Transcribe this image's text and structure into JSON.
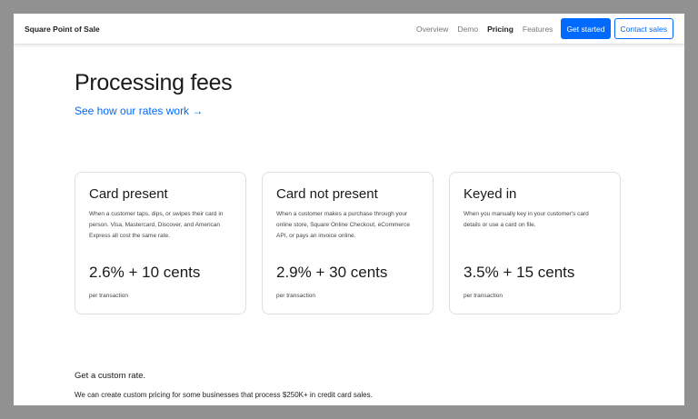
{
  "header": {
    "brand": "Square Point of Sale",
    "nav": [
      {
        "label": "Overview",
        "active": false
      },
      {
        "label": "Demo",
        "active": false
      },
      {
        "label": "Pricing",
        "active": true
      },
      {
        "label": "Features",
        "active": false
      }
    ],
    "get_started": "Get started",
    "contact_sales": "Contact sales"
  },
  "main": {
    "title": "Processing fees",
    "rates_link": "See how our rates work →",
    "cards": [
      {
        "title": "Card present",
        "description": "When a customer taps, dips, or swipes their card in person. Visa, Mastercard, Discover, and American Express all cost the same rate.",
        "price": "2.6% + 10 cents",
        "unit": "per transaction"
      },
      {
        "title": "Card not present",
        "description": "When a customer makes a purchase through your online store, Square Online Checkout, eCommerce API, or pays an invoice online.",
        "price": "2.9% + 30 cents",
        "unit": "per transaction"
      },
      {
        "title": "Keyed in",
        "description": "When you manually key in your customer's card details or use a card on file.",
        "price": "3.5% + 15 cents",
        "unit": "per transaction"
      }
    ],
    "custom_title": "Get a custom rate.",
    "custom_text": "We can create custom pricing for some businesses that process $250K+ in credit card sales."
  },
  "colors": {
    "accent": "#006aff",
    "backdrop": "#919191"
  }
}
